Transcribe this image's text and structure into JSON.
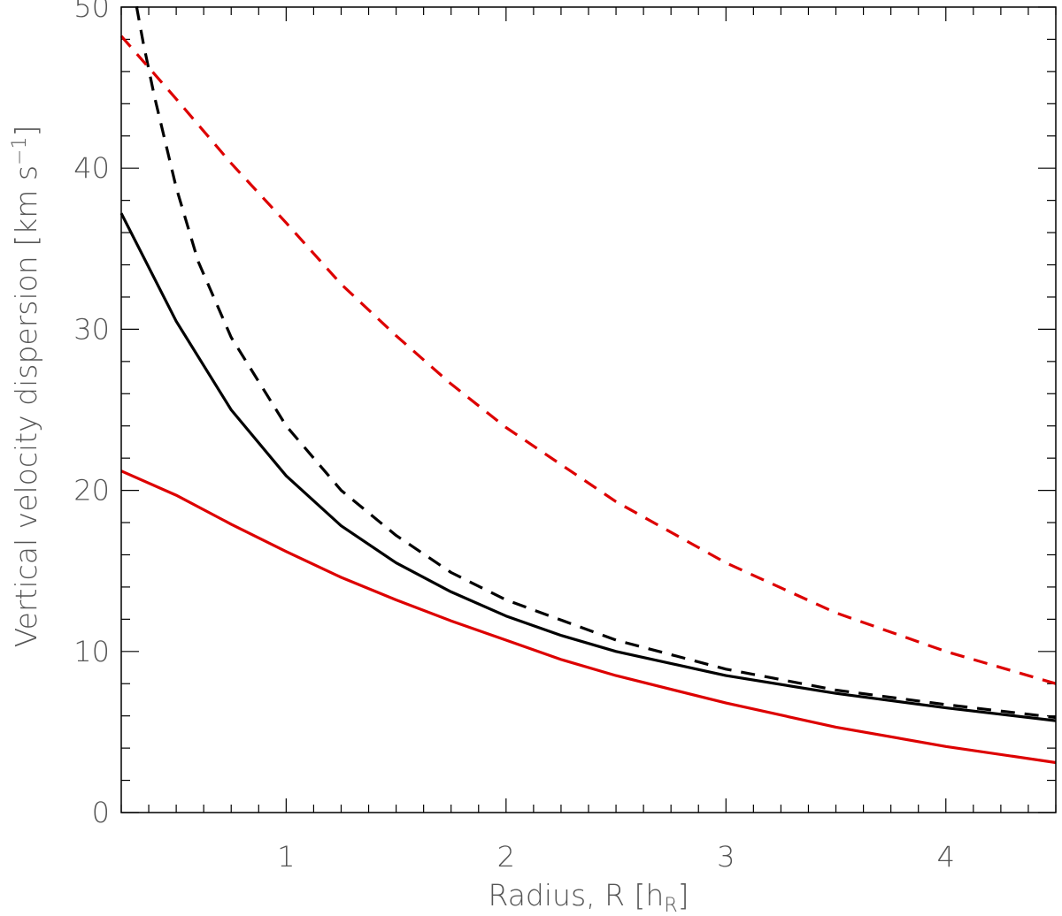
{
  "chart_data": {
    "type": "line",
    "xlabel_main": "Radius, R [h",
    "xlabel_sub": "R",
    "xlabel_end": "]",
    "ylabel_main": "Vertical velocity dispersion [km s",
    "ylabel_sup": "−1",
    "ylabel_end": "]",
    "xlim": [
      0.25,
      4.5
    ],
    "ylim": [
      0,
      50
    ],
    "x_ticks": [
      1,
      2,
      3,
      4
    ],
    "x_tick_labels": [
      "1",
      "2",
      "3",
      "4"
    ],
    "y_ticks": [
      0,
      10,
      20,
      30,
      40,
      50
    ],
    "y_tick_labels": [
      "0",
      "10",
      "20",
      "30",
      "40",
      "50"
    ],
    "x_minor_step": 0.125,
    "y_minor_step": 2,
    "grid": false,
    "legend": "none",
    "series": [
      {
        "color": "#000000",
        "dash": "solid",
        "x": [
          0.25,
          0.5,
          0.75,
          1.0,
          1.25,
          1.5,
          1.75,
          2.0,
          2.25,
          2.5,
          3.0,
          3.5,
          4.0,
          4.5
        ],
        "values": [
          37.2,
          30.5,
          25.0,
          20.9,
          17.8,
          15.5,
          13.7,
          12.2,
          11.0,
          10.0,
          8.5,
          7.4,
          6.5,
          5.7
        ]
      },
      {
        "color": "#000000",
        "dash": "dashed",
        "x": [
          0.3,
          0.35,
          0.4,
          0.5,
          0.6,
          0.75,
          1.0,
          1.25,
          1.5,
          1.75,
          2.0,
          2.5,
          3.0,
          3.5,
          4.0,
          4.5
        ],
        "values": [
          51.5,
          47.8,
          44.5,
          38.8,
          34.2,
          29.5,
          24.0,
          20.0,
          17.2,
          14.9,
          13.2,
          10.7,
          8.9,
          7.6,
          6.7,
          5.9
        ]
      },
      {
        "color": "#dd0000",
        "dash": "solid",
        "x": [
          0.25,
          0.5,
          0.75,
          1.0,
          1.25,
          1.5,
          1.75,
          2.0,
          2.25,
          2.5,
          3.0,
          3.5,
          4.0,
          4.5
        ],
        "values": [
          21.2,
          19.7,
          17.9,
          16.2,
          14.6,
          13.2,
          11.9,
          10.7,
          9.5,
          8.5,
          6.8,
          5.3,
          4.1,
          3.1
        ]
      },
      {
        "color": "#dd0000",
        "dash": "dashed",
        "x": [
          0.25,
          0.5,
          0.75,
          1.0,
          1.25,
          1.5,
          1.75,
          2.0,
          2.5,
          3.0,
          3.5,
          4.0,
          4.5
        ],
        "values": [
          48.2,
          44.3,
          40.3,
          36.6,
          32.8,
          29.6,
          26.6,
          23.9,
          19.3,
          15.5,
          12.4,
          10.0,
          8.0
        ]
      }
    ]
  }
}
